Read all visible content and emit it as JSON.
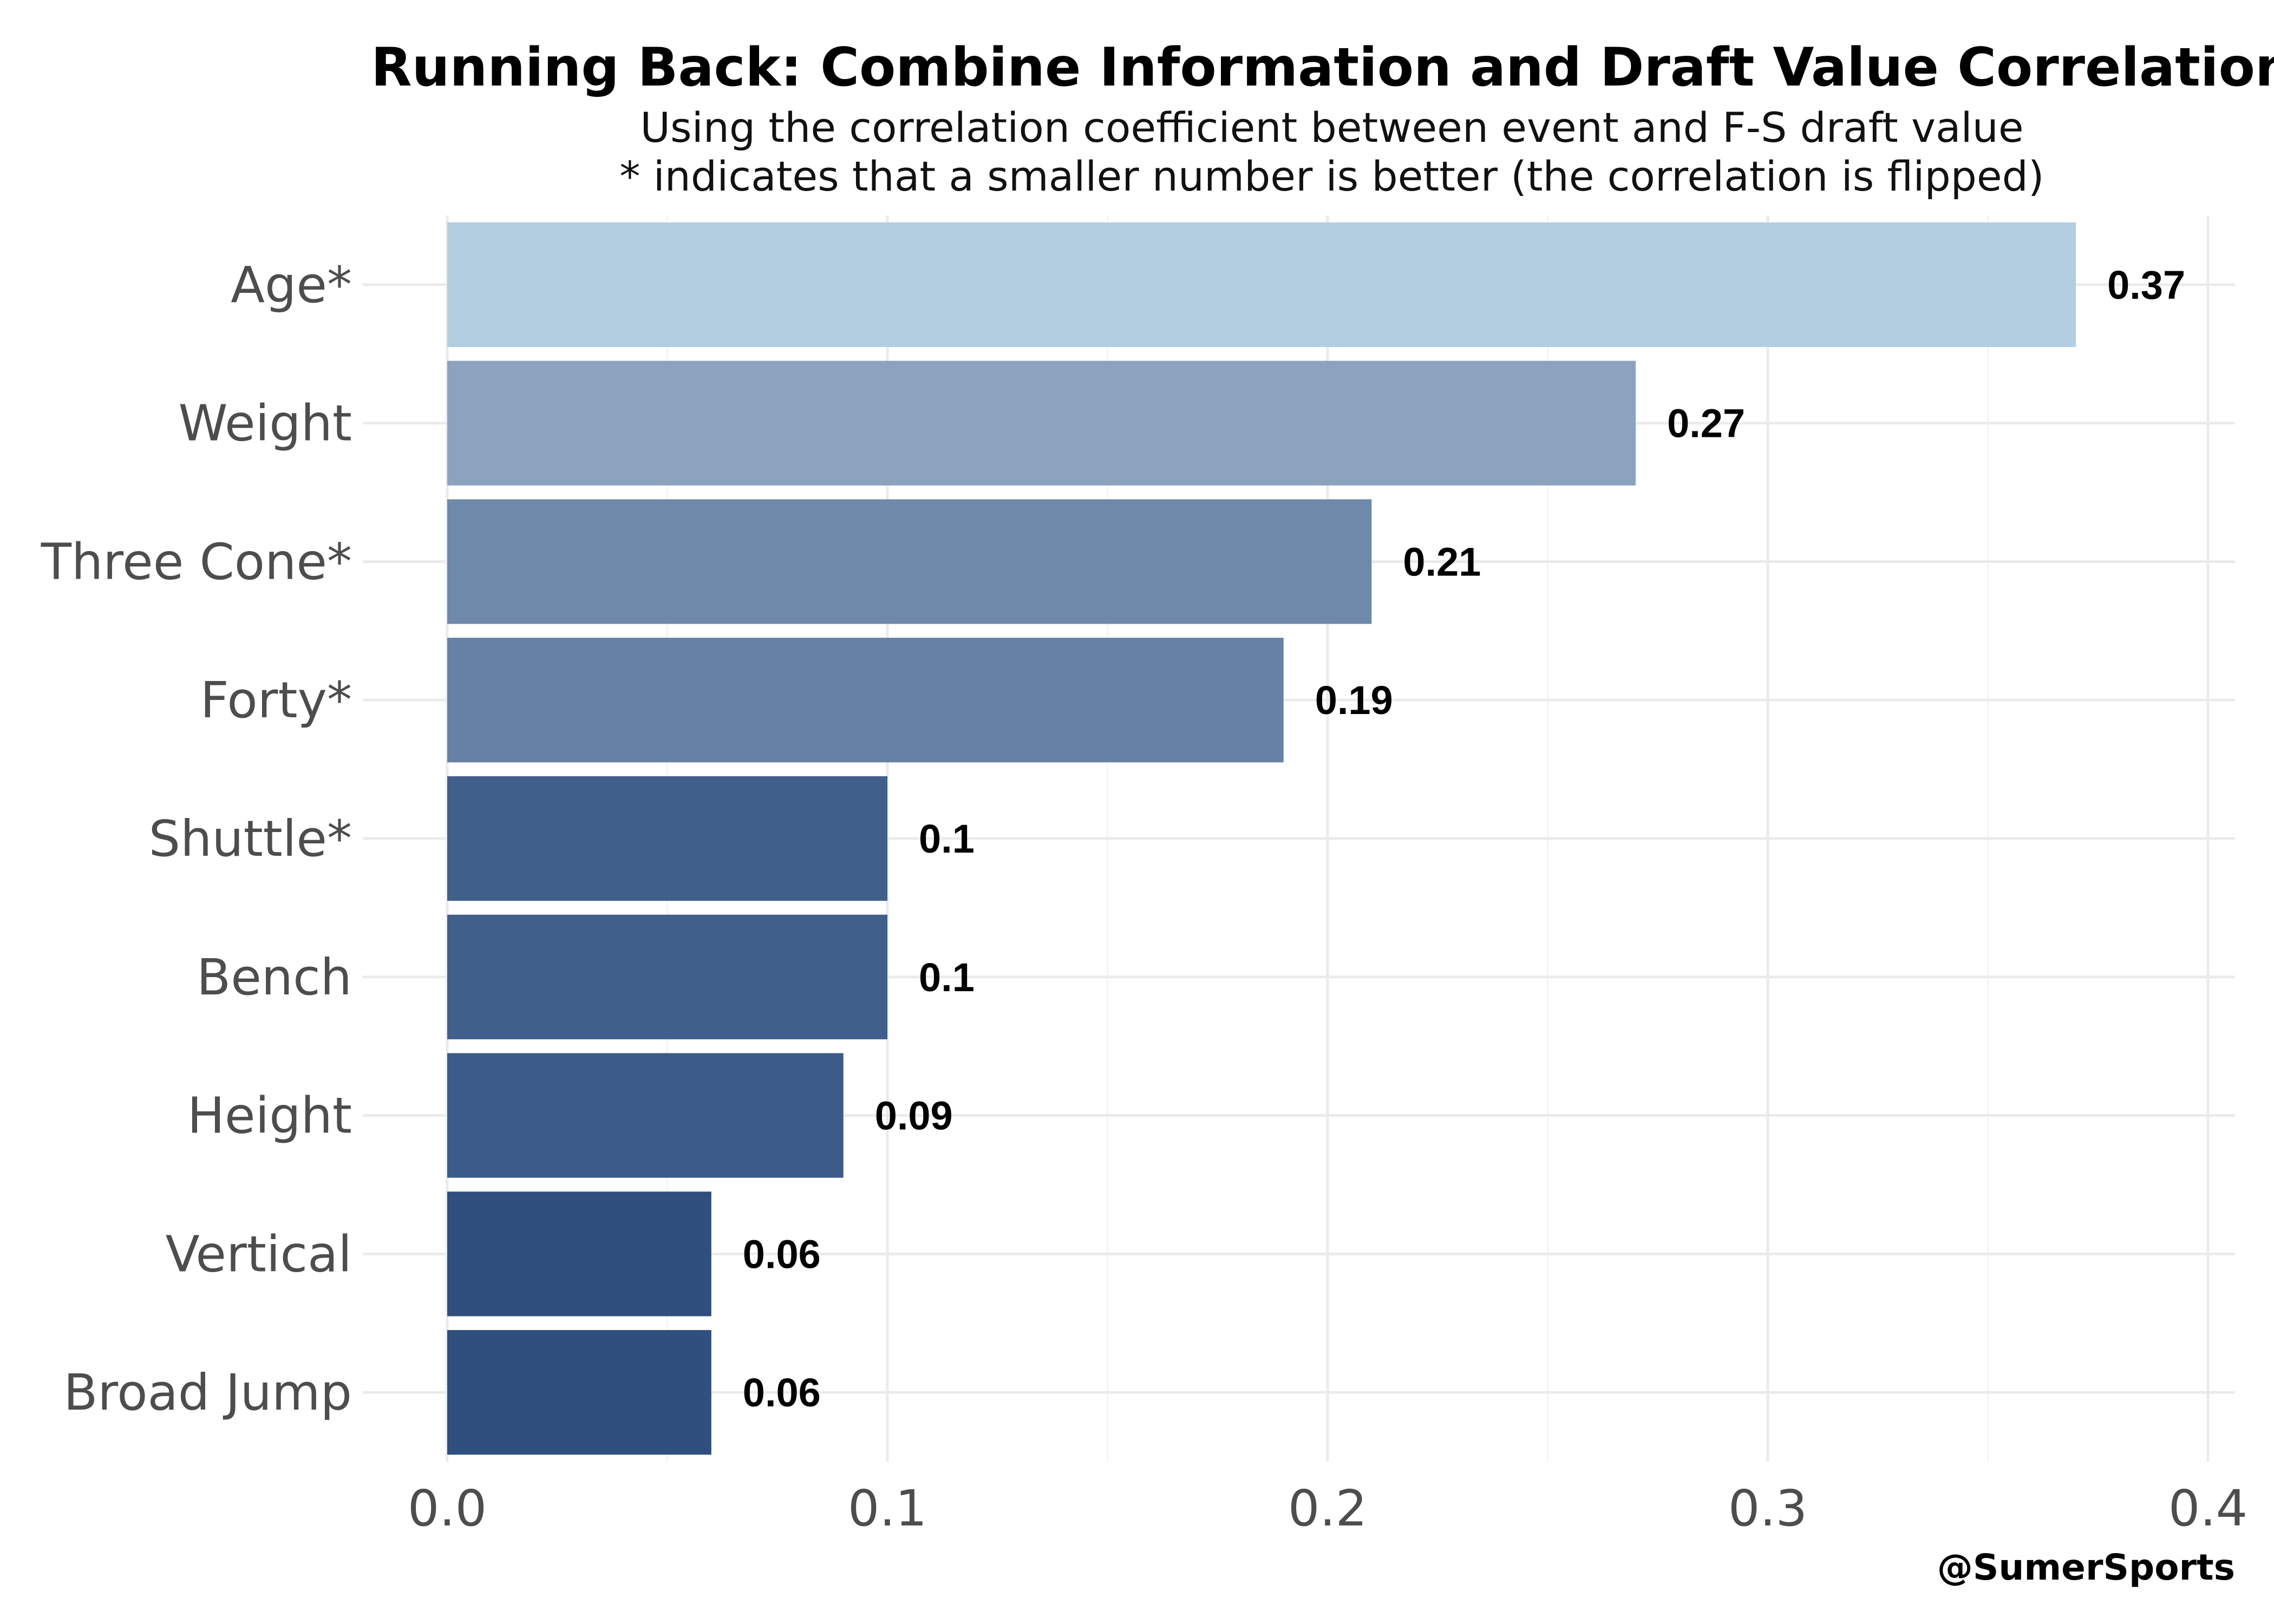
{
  "chart_data": {
    "type": "bar",
    "orientation": "horizontal",
    "title": "Running Back: Combine Information and Draft Value Correlation",
    "subtitle_lines": [
      "Using the correlation coefficient between event and F-S draft value",
      "* indicates that a smaller number is better (the correlation is flipped)"
    ],
    "caption": "@SumerSports",
    "categories": [
      "Age*",
      "Weight",
      "Three Cone*",
      "Forty*",
      "Shuttle*",
      "Bench",
      "Height",
      "Vertical",
      "Broad Jump"
    ],
    "values": [
      0.37,
      0.27,
      0.21,
      0.19,
      0.1,
      0.1,
      0.09,
      0.06,
      0.06
    ],
    "value_labels": [
      "0.37",
      "0.27",
      "0.21",
      "0.19",
      "0.1",
      "0.1",
      "0.09",
      "0.06",
      "0.06"
    ],
    "colors": [
      "#b3cde0",
      "#8ba3bf",
      "#6f89ab",
      "#6681a5",
      "#415f8b",
      "#415f8b",
      "#3d5b89",
      "#2f4f7e",
      "#2f4f7e"
    ],
    "xticks": [
      "0.0",
      "0.1",
      "0.2",
      "0.3",
      "0.4"
    ],
    "xlim": [
      0,
      0.4
    ],
    "xlabel": "",
    "ylabel": "",
    "grid": true,
    "legend": "none"
  }
}
